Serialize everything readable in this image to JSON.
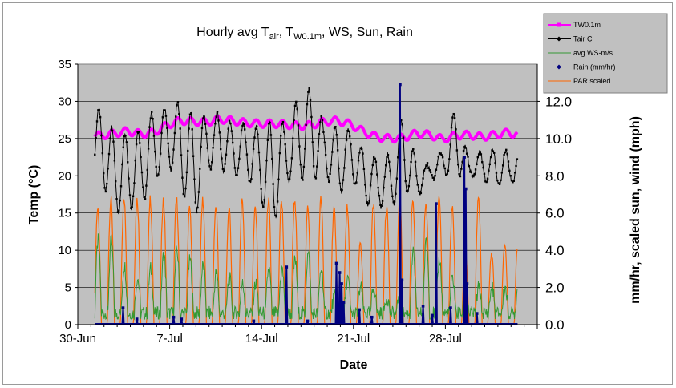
{
  "chart_data": {
    "type": "line",
    "title_parts": {
      "p1": "Hourly avg T",
      "s1": "air",
      "p2": ", T",
      "s2": "W0.1m",
      "p3": ", WS, Sun, Rain"
    },
    "xlabel": "Date",
    "ylabel": "Temp (°C)",
    "y2label": "mm/hr, scaled sun, wind (mph)",
    "x_ticks": [
      "30-Jun",
      "7-Jul",
      "14-Jul",
      "21-Jul",
      "28-Jul"
    ],
    "x_range_days_from_jun30": [
      0,
      35
    ],
    "ylim": [
      0,
      35
    ],
    "y_ticks": [
      "0",
      "5",
      "10",
      "15",
      "20",
      "25",
      "30",
      "35"
    ],
    "y2lim": [
      0,
      14
    ],
    "y2_ticks": [
      "0.0",
      "2.0",
      "4.0",
      "6.0",
      "8.0",
      "10.0",
      "12.0"
    ],
    "grid": true,
    "plot_background": "#c0c0c0",
    "legend": {
      "placement": "top-right",
      "items": [
        {
          "name": "TW0.1m",
          "color": "#ff00ff",
          "marker": "square"
        },
        {
          "name": "Tair C",
          "color": "#000000",
          "marker": "diamond"
        },
        {
          "name": "avg WS-m/s",
          "color": "#339933",
          "marker": "none"
        },
        {
          "name": "Rain (mm/hr)",
          "color": "#000080",
          "marker": "diamond"
        },
        {
          "name": "PAR scaled",
          "color": "#ff6600",
          "marker": "none"
        }
      ]
    },
    "series_params": {
      "start_day": 1.3,
      "end_day": 33.5,
      "tw_daily_means": [
        25.4,
        25.7,
        26.0,
        25.6,
        25.8,
        26.8,
        27.4,
        27.3,
        27.2,
        27.6,
        27.4,
        27.1,
        27.0,
        27.0,
        26.9,
        26.7,
        26.8,
        27.3,
        27.4,
        26.9,
        25.9,
        25.2,
        25.0,
        25.1,
        25.7,
        25.5,
        24.9,
        25.4,
        25.5,
        25.2,
        25.5,
        25.8,
        25.4,
        25.1
      ],
      "tair_daily_min": [
        19.5,
        15.0,
        15.5,
        16.0,
        19.0,
        21.5,
        19.0,
        13.0,
        21.0,
        21.0,
        20.0,
        20.0,
        17.0,
        12.5,
        19.0,
        19.5,
        19.5,
        20.5,
        17.0,
        20.0,
        16.0,
        16.0,
        15.5,
        18.0,
        17.0,
        19.5,
        20.0,
        20.0,
        20.0,
        19.5,
        18.5,
        19.0,
        19.0,
        19.5
      ],
      "tair_daily_max": [
        28.8,
        26.0,
        25.5,
        26.0,
        29.0,
        29.0,
        30.0,
        28.0,
        28.0,
        28.5,
        27.0,
        27.0,
        26.5,
        27.5,
        27.0,
        30.5,
        32.0,
        26.5,
        26.5,
        26.0,
        23.5,
        22.5,
        23.0,
        28.5,
        22.0,
        21.5,
        23.5,
        29.5,
        22.0,
        23.5,
        23.5,
        23.5,
        22.5,
        22.0
      ],
      "ws_daily_peak_mph": [
        4.5,
        4.5,
        3.2,
        2.5,
        3.0,
        3.8,
        4.0,
        3.5,
        3.2,
        2.8,
        2.5,
        2.2,
        2.2,
        3.0,
        3.0,
        3.5,
        3.8,
        3.0,
        1.5,
        2.5,
        2.0,
        2.0,
        1.5,
        2.0,
        3.8,
        4.5,
        3.5,
        2.5,
        2.0,
        2.0,
        2.0,
        2.0,
        2.0,
        1.8
      ],
      "par_daily_peak": [
        6.5,
        7.0,
        7.0,
        7.0,
        7.0,
        7.0,
        7.0,
        6.5,
        7.0,
        6.6,
        6.5,
        7.0,
        6.5,
        7.0,
        6.8,
        7.0,
        6.5,
        7.0,
        6.5,
        6.5,
        4.5,
        6.6,
        6.6,
        7.0,
        7.0,
        6.8,
        7.0,
        6.5,
        4.0,
        7.0,
        4.0,
        4.5,
        4.5,
        6.0
      ]
    },
    "rain_events": [
      {
        "day": 3.45,
        "value": 0.9
      },
      {
        "day": 4.5,
        "value": 0.3
      },
      {
        "day": 7.3,
        "value": 0.4
      },
      {
        "day": 7.9,
        "value": 0.3
      },
      {
        "day": 13.4,
        "value": 0.2
      },
      {
        "day": 15.9,
        "value": 3.1
      },
      {
        "day": 17.5,
        "value": 0.2
      },
      {
        "day": 19.7,
        "value": 3.3
      },
      {
        "day": 19.95,
        "value": 2.8
      },
      {
        "day": 20.1,
        "value": 2.2
      },
      {
        "day": 20.25,
        "value": 1.2
      },
      {
        "day": 21.45,
        "value": 0.8
      },
      {
        "day": 22.4,
        "value": 0.4
      },
      {
        "day": 24.55,
        "value": 12.9
      },
      {
        "day": 24.7,
        "value": 2.4
      },
      {
        "day": 26.3,
        "value": 1.0
      },
      {
        "day": 27.0,
        "value": 0.5
      },
      {
        "day": 27.3,
        "value": 6.5
      },
      {
        "day": 28.4,
        "value": 0.9
      },
      {
        "day": 29.45,
        "value": 9.0
      },
      {
        "day": 29.55,
        "value": 7.3
      },
      {
        "day": 29.65,
        "value": 2.2
      },
      {
        "day": 30.4,
        "value": 0.6
      }
    ]
  }
}
